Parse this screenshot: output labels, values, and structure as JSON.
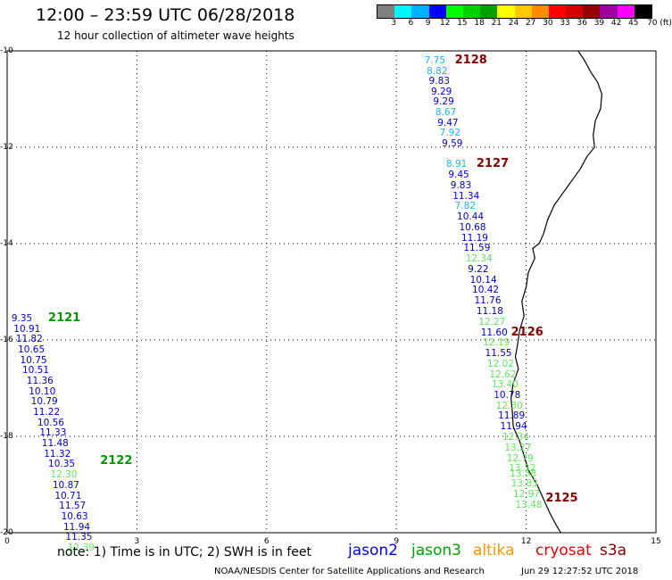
{
  "title": "12:00  –  23:59 UTC 06/28/2018",
  "subtitle": "12 hour collection of altimeter wave heights",
  "legend": {
    "colors": [
      "#7f7f7f",
      "#00f5ff",
      "#00b0ff",
      "#0000ff",
      "#00ff00",
      "#00d200",
      "#00a000",
      "#ffff00",
      "#ffc800",
      "#ff8c00",
      "#ff0000",
      "#d20000",
      "#960000",
      "#a000a0",
      "#ff00ff",
      "#000000"
    ],
    "tick_labels": [
      "3",
      "6",
      "9",
      "12",
      "15",
      "18",
      "21",
      "24",
      "27",
      "30",
      "33",
      "36",
      "39",
      "42",
      "45",
      "70 (ft)"
    ]
  },
  "axes": {
    "x_ticks": [
      "0",
      "3",
      "6",
      "9",
      "12",
      "15"
    ],
    "y_ticks": [
      "-10",
      "-12",
      "-14",
      "-16",
      "-18",
      "-20"
    ],
    "xlim": [
      0,
      15
    ],
    "ylim": [
      -20,
      -10
    ]
  },
  "colors": {
    "dark_blue": "#0000c8",
    "light_blue": "#1eb4e6",
    "light_green": "#64e664",
    "pass_green": "#009600",
    "pass_dark_red": "#800000"
  },
  "passes": [
    {
      "label": "2128",
      "color": "pass_dark_red",
      "x": 10.35,
      "y": -10.2
    },
    {
      "label": "2127",
      "color": "pass_dark_red",
      "x": 10.85,
      "y": -12.35
    },
    {
      "label": "2126",
      "color": "pass_dark_red",
      "x": 11.65,
      "y": -15.85
    },
    {
      "label": "2125",
      "color": "pass_dark_red",
      "x": 12.45,
      "y": -19.3
    },
    {
      "label": "2121",
      "color": "pass_green",
      "x": 0.95,
      "y": -15.55
    },
    {
      "label": "2122",
      "color": "pass_green",
      "x": 2.15,
      "y": -18.52
    }
  ],
  "observations": [
    {
      "v": "7.75",
      "c": "light_blue",
      "x": 9.65,
      "y": -10.2
    },
    {
      "v": "8.82",
      "c": "light_blue",
      "x": 9.7,
      "y": -10.42
    },
    {
      "v": "9.83",
      "c": "dark_blue",
      "x": 9.75,
      "y": -10.63
    },
    {
      "v": "9.29",
      "c": "dark_blue",
      "x": 9.8,
      "y": -10.85
    },
    {
      "v": "9.29",
      "c": "dark_blue",
      "x": 9.85,
      "y": -11.06
    },
    {
      "v": "8.67",
      "c": "light_blue",
      "x": 9.9,
      "y": -11.28
    },
    {
      "v": "9.47",
      "c": "dark_blue",
      "x": 9.95,
      "y": -11.5
    },
    {
      "v": "7.92",
      "c": "light_blue",
      "x": 10.0,
      "y": -11.71
    },
    {
      "v": "9.59",
      "c": "dark_blue",
      "x": 10.05,
      "y": -11.93
    },
    {
      "v": "8.91",
      "c": "light_blue",
      "x": 10.15,
      "y": -12.36
    },
    {
      "v": "9.45",
      "c": "dark_blue",
      "x": 10.2,
      "y": -12.58
    },
    {
      "v": "9.83",
      "c": "dark_blue",
      "x": 10.25,
      "y": -12.8
    },
    {
      "v": "11.34",
      "c": "dark_blue",
      "x": 10.3,
      "y": -13.01
    },
    {
      "v": "7.82",
      "c": "light_blue",
      "x": 10.35,
      "y": -13.23
    },
    {
      "v": "10.44",
      "c": "dark_blue",
      "x": 10.4,
      "y": -13.45
    },
    {
      "v": "10.68",
      "c": "dark_blue",
      "x": 10.45,
      "y": -13.66
    },
    {
      "v": "11.19",
      "c": "dark_blue",
      "x": 10.5,
      "y": -13.88
    },
    {
      "v": "11.59",
      "c": "dark_blue",
      "x": 10.55,
      "y": -14.1
    },
    {
      "v": "12.34",
      "c": "light_green",
      "x": 10.6,
      "y": -14.32
    },
    {
      "v": "9.22",
      "c": "dark_blue",
      "x": 10.65,
      "y": -14.54
    },
    {
      "v": "10.14",
      "c": "dark_blue",
      "x": 10.7,
      "y": -14.75
    },
    {
      "v": "10.42",
      "c": "dark_blue",
      "x": 10.75,
      "y": -14.97
    },
    {
      "v": "11.76",
      "c": "dark_blue",
      "x": 10.8,
      "y": -15.19
    },
    {
      "v": "11.18",
      "c": "dark_blue",
      "x": 10.85,
      "y": -15.41
    },
    {
      "v": "12.27",
      "c": "light_green",
      "x": 10.9,
      "y": -15.63
    },
    {
      "v": "11.60",
      "c": "dark_blue",
      "x": 10.95,
      "y": -15.85
    },
    {
      "v": "12.19",
      "c": "light_green",
      "x": 11.0,
      "y": -16.06
    },
    {
      "v": "11.55",
      "c": "dark_blue",
      "x": 11.05,
      "y": -16.28
    },
    {
      "v": "12.02",
      "c": "light_green",
      "x": 11.1,
      "y": -16.5
    },
    {
      "v": "12.62",
      "c": "light_green",
      "x": 11.15,
      "y": -16.72
    },
    {
      "v": "13.40",
      "c": "light_green",
      "x": 11.2,
      "y": -16.93
    },
    {
      "v": "10.78",
      "c": "dark_blue",
      "x": 11.25,
      "y": -17.15
    },
    {
      "v": "12.30",
      "c": "light_green",
      "x": 11.3,
      "y": -17.37
    },
    {
      "v": "11.89",
      "c": "dark_blue",
      "x": 11.35,
      "y": -17.58
    },
    {
      "v": "11.94",
      "c": "dark_blue",
      "x": 11.4,
      "y": -17.8
    },
    {
      "v": "12.34",
      "c": "light_green",
      "x": 11.45,
      "y": -18.02
    },
    {
      "v": "13.27",
      "c": "light_green",
      "x": 11.5,
      "y": -18.24
    },
    {
      "v": "12.79",
      "c": "light_green",
      "x": 11.55,
      "y": -18.46
    },
    {
      "v": "13.32",
      "c": "light_green",
      "x": 11.6,
      "y": -18.67
    },
    {
      "v": "13.58",
      "c": "light_green",
      "x": 11.62,
      "y": -18.78
    },
    {
      "v": "13.83",
      "c": "light_green",
      "x": 11.65,
      "y": -18.98
    },
    {
      "v": "12.97",
      "c": "light_green",
      "x": 11.7,
      "y": -19.2
    },
    {
      "v": "13.48",
      "c": "light_green",
      "x": 11.75,
      "y": -19.42
    },
    {
      "v": "9.35",
      "c": "dark_blue",
      "x": 0.1,
      "y": -15.55
    },
    {
      "v": "10.91",
      "c": "dark_blue",
      "x": 0.15,
      "y": -15.77
    },
    {
      "v": "11.82",
      "c": "dark_blue",
      "x": 0.2,
      "y": -15.98
    },
    {
      "v": "10.65",
      "c": "dark_blue",
      "x": 0.25,
      "y": -16.2
    },
    {
      "v": "10.75",
      "c": "dark_blue",
      "x": 0.3,
      "y": -16.42
    },
    {
      "v": "10.51",
      "c": "dark_blue",
      "x": 0.35,
      "y": -16.63
    },
    {
      "v": "11.36",
      "c": "dark_blue",
      "x": 0.45,
      "y": -16.85
    },
    {
      "v": "10.10",
      "c": "dark_blue",
      "x": 0.5,
      "y": -17.07
    },
    {
      "v": "10.79",
      "c": "dark_blue",
      "x": 0.55,
      "y": -17.28
    },
    {
      "v": "11.22",
      "c": "dark_blue",
      "x": 0.6,
      "y": -17.5
    },
    {
      "v": "10.56",
      "c": "dark_blue",
      "x": 0.7,
      "y": -17.72
    },
    {
      "v": "11.33",
      "c": "dark_blue",
      "x": 0.75,
      "y": -17.93
    },
    {
      "v": "11.48",
      "c": "dark_blue",
      "x": 0.8,
      "y": -18.15
    },
    {
      "v": "11.32",
      "c": "dark_blue",
      "x": 0.85,
      "y": -18.37
    },
    {
      "v": "10.35",
      "c": "dark_blue",
      "x": 0.95,
      "y": -18.58
    },
    {
      "v": "12.30",
      "c": "light_green",
      "x": 1.0,
      "y": -18.8
    },
    {
      "v": "10.87",
      "c": "dark_blue",
      "x": 1.05,
      "y": -19.02
    },
    {
      "v": "10.71",
      "c": "dark_blue",
      "x": 1.1,
      "y": -19.24
    },
    {
      "v": "11.57",
      "c": "dark_blue",
      "x": 1.2,
      "y": -19.45
    },
    {
      "v": "10.63",
      "c": "dark_blue",
      "x": 1.25,
      "y": -19.67
    },
    {
      "v": "11.94",
      "c": "dark_blue",
      "x": 1.3,
      "y": -19.89
    },
    {
      "v": "11.35",
      "c": "dark_blue",
      "x": 1.35,
      "y": -20.1
    },
    {
      "v": "12.39",
      "c": "light_green",
      "x": 1.4,
      "y": -20.32
    }
  ],
  "coastline": [
    [
      13.2,
      -10.0
    ],
    [
      13.35,
      -10.2
    ],
    [
      13.5,
      -10.45
    ],
    [
      13.65,
      -10.65
    ],
    [
      13.75,
      -10.9
    ],
    [
      13.72,
      -11.2
    ],
    [
      13.6,
      -11.45
    ],
    [
      13.55,
      -11.75
    ],
    [
      13.58,
      -12.0
    ],
    [
      13.4,
      -12.2
    ],
    [
      13.25,
      -12.45
    ],
    [
      13.05,
      -12.7
    ],
    [
      12.85,
      -12.95
    ],
    [
      12.65,
      -13.2
    ],
    [
      12.5,
      -13.5
    ],
    [
      12.4,
      -13.8
    ],
    [
      12.3,
      -14.0
    ],
    [
      12.15,
      -14.1
    ],
    [
      12.2,
      -14.3
    ],
    [
      12.05,
      -14.6
    ],
    [
      12.0,
      -14.9
    ],
    [
      11.9,
      -15.2
    ],
    [
      11.95,
      -15.5
    ],
    [
      11.85,
      -15.8
    ],
    [
      11.8,
      -16.1
    ],
    [
      11.75,
      -16.35
    ],
    [
      11.82,
      -16.6
    ],
    [
      11.7,
      -16.9
    ],
    [
      11.65,
      -17.2
    ],
    [
      11.68,
      -17.5
    ],
    [
      11.7,
      -17.8
    ],
    [
      11.85,
      -18.1
    ],
    [
      11.95,
      -18.4
    ],
    [
      12.05,
      -18.7
    ],
    [
      12.25,
      -19.0
    ],
    [
      12.4,
      -19.3
    ],
    [
      12.55,
      -19.6
    ],
    [
      12.7,
      -19.85
    ],
    [
      12.8,
      -20.0
    ]
  ],
  "note": "note:  1) Time is in UTC; 2) SWH is in feet",
  "satellites": [
    {
      "name": "jason2",
      "color": "#0000e6"
    },
    {
      "name": "jason3",
      "color": "#00a000"
    },
    {
      "name": "altika",
      "color": "#ff9600"
    },
    {
      "name": "cryosat",
      "color": "#e60000"
    },
    {
      "name": "s3a",
      "color": "#800000"
    }
  ],
  "footer": {
    "credit": "NOAA/NESDIS Center for Satellite Applications and Research",
    "timestamp": "Jun 29 12:27:52 UTC 2018"
  }
}
